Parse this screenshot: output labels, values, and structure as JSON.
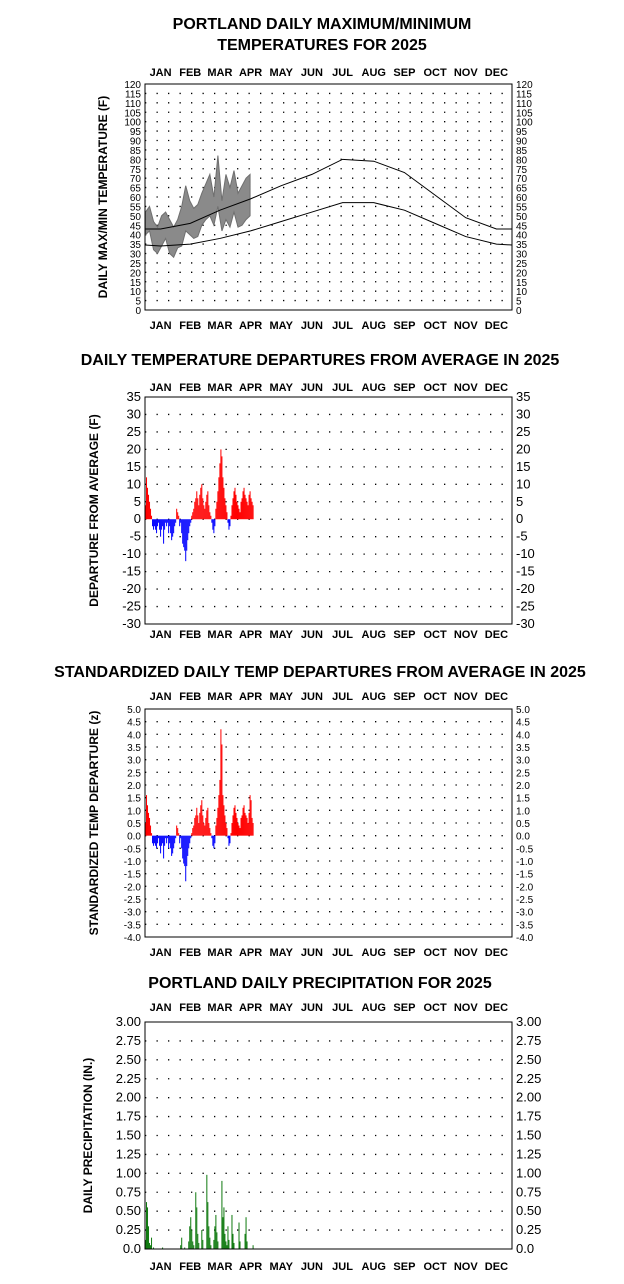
{
  "months": [
    "JAN",
    "FEB",
    "MAR",
    "APR",
    "MAY",
    "JUN",
    "JUL",
    "AUG",
    "SEP",
    "OCT",
    "NOV",
    "DEC"
  ],
  "chart_data": [
    {
      "type": "line",
      "title": "PORTLAND DAILY MAXIMUM/MINIMUM TEMPERATURES FOR 2025",
      "ylabel": "DAILY MAX/MIN TEMPERATURE (F)",
      "xlabel": "",
      "ylim": [
        0,
        120
      ],
      "yticks": [
        "0",
        "5",
        "10",
        "15",
        "20",
        "25",
        "30",
        "35",
        "40",
        "45",
        "50",
        "55",
        "60",
        "65",
        "70",
        "75",
        "80",
        "85",
        "90",
        "95",
        "100",
        "105",
        "110",
        "115",
        "120"
      ],
      "normal_high": {
        "month_mid_values": [
          43,
          46,
          53,
          59,
          66,
          72,
          80,
          79,
          73,
          61,
          49,
          43
        ]
      },
      "normal_low": {
        "month_mid_values": [
          34,
          35,
          38,
          42,
          47,
          52,
          57,
          57,
          53,
          46,
          39,
          35
        ]
      },
      "observed_range_2025": {
        "days": [
          1,
          5,
          9,
          13,
          17,
          21,
          25,
          29,
          33,
          37,
          41,
          45,
          49,
          53,
          57,
          61,
          65,
          69,
          73,
          77,
          81,
          85,
          89,
          93,
          97,
          101,
          105
        ],
        "max": [
          52,
          55,
          47,
          44,
          50,
          52,
          48,
          44,
          48,
          55,
          66,
          58,
          54,
          56,
          62,
          67,
          72,
          60,
          82,
          58,
          72,
          65,
          74,
          62,
          66,
          70,
          72
        ],
        "min": [
          40,
          42,
          32,
          30,
          34,
          38,
          30,
          28,
          33,
          34,
          42,
          40,
          38,
          39,
          45,
          48,
          50,
          45,
          55,
          42,
          48,
          44,
          52,
          44,
          45,
          48,
          50
        ]
      }
    },
    {
      "type": "bar",
      "title": "DAILY TEMPERATURE DEPARTURES FROM AVERAGE IN 2025",
      "ylabel": "DEPARTURE FROM AVERAGE (F)",
      "xlabel": "",
      "ylim": [
        -30,
        35
      ],
      "yticks": [
        "-30",
        "-25",
        "-20",
        "-15",
        "-10",
        "-5",
        "0",
        "5",
        "10",
        "15",
        "20",
        "25",
        "30",
        "35"
      ],
      "days": [
        1,
        2,
        3,
        4,
        5,
        6,
        7,
        8,
        9,
        10,
        11,
        12,
        13,
        14,
        15,
        16,
        17,
        18,
        19,
        20,
        21,
        22,
        23,
        24,
        25,
        26,
        27,
        28,
        29,
        30,
        31,
        32,
        33,
        34,
        35,
        36,
        37,
        38,
        39,
        40,
        41,
        42,
        43,
        44,
        45,
        46,
        47,
        48,
        49,
        50,
        51,
        52,
        53,
        54,
        55,
        56,
        57,
        58,
        59,
        60,
        61,
        62,
        63,
        64,
        65,
        66,
        67,
        68,
        69,
        70,
        71,
        72,
        73,
        74,
        75,
        76,
        77,
        78,
        79,
        80,
        81,
        82,
        83,
        84,
        85,
        86,
        87,
        88,
        89,
        90,
        91,
        92,
        93,
        94,
        95,
        96,
        97,
        98,
        99,
        100,
        101,
        102,
        103,
        104,
        105,
        106,
        107,
        108
      ],
      "values": [
        4,
        12,
        9,
        7,
        5,
        3,
        1,
        -2,
        -3,
        -2,
        -3,
        -4,
        -2,
        -1,
        -3,
        -5,
        -3,
        -2,
        -7,
        -3,
        -1,
        -2,
        -1,
        -4,
        -2,
        -4,
        -6,
        -5,
        -4,
        -2,
        -1,
        3,
        2,
        1,
        -2,
        -1,
        -4,
        -7,
        -8,
        -9,
        -12,
        -9,
        -6,
        -4,
        -2,
        -1,
        1,
        2,
        3,
        5,
        6,
        8,
        6,
        4,
        7,
        9,
        10,
        6,
        4,
        3,
        5,
        7,
        8,
        4,
        2,
        1,
        -1,
        -3,
        -4,
        -2,
        3,
        5,
        8,
        12,
        16,
        20,
        18,
        12,
        9,
        6,
        4,
        2,
        -1,
        -3,
        -2,
        1,
        4,
        6,
        8,
        9,
        7,
        5,
        4,
        3,
        2,
        5,
        6,
        8,
        9,
        7,
        6,
        5,
        4,
        7,
        8,
        6,
        5,
        4
      ]
    },
    {
      "type": "bar",
      "title": "STANDARDIZED DAILY TEMP DEPARTURES FROM AVERAGE IN 2025",
      "ylabel": "STANDARDIZED TEMP DEPARTURE (z)",
      "xlabel": "",
      "ylim": [
        -4.0,
        5.0
      ],
      "yticks": [
        "-4.0",
        "-3.5",
        "-3.0",
        "-2.5",
        "-2.0",
        "-1.5",
        "-1.0",
        "-0.5",
        "0.0",
        "0.5",
        "1.0",
        "1.5",
        "2.0",
        "2.5",
        "3.0",
        "3.5",
        "4.0",
        "4.5",
        "5.0"
      ],
      "days": [
        1,
        2,
        3,
        4,
        5,
        6,
        7,
        8,
        9,
        10,
        11,
        12,
        13,
        14,
        15,
        16,
        17,
        18,
        19,
        20,
        21,
        22,
        23,
        24,
        25,
        26,
        27,
        28,
        29,
        30,
        31,
        32,
        33,
        34,
        35,
        36,
        37,
        38,
        39,
        40,
        41,
        42,
        43,
        44,
        45,
        46,
        47,
        48,
        49,
        50,
        51,
        52,
        53,
        54,
        55,
        56,
        57,
        58,
        59,
        60,
        61,
        62,
        63,
        64,
        65,
        66,
        67,
        68,
        69,
        70,
        71,
        72,
        73,
        74,
        75,
        76,
        77,
        78,
        79,
        80,
        81,
        82,
        83,
        84,
        85,
        86,
        87,
        88,
        89,
        90,
        91,
        92,
        93,
        94,
        95,
        96,
        97,
        98,
        99,
        100,
        101,
        102,
        103,
        104,
        105,
        106,
        107,
        108
      ],
      "values": [
        0.5,
        1.6,
        1.2,
        0.9,
        0.7,
        0.4,
        0.1,
        -0.3,
        -0.4,
        -0.3,
        -0.4,
        -0.5,
        -0.3,
        -0.1,
        -0.4,
        -0.7,
        -0.4,
        -0.3,
        -0.9,
        -0.4,
        -0.1,
        -0.3,
        -0.1,
        -0.5,
        -0.3,
        -0.5,
        -0.8,
        -0.7,
        -0.5,
        -0.3,
        -0.1,
        0.4,
        0.3,
        0.1,
        -0.3,
        -0.1,
        -0.5,
        -0.9,
        -1.1,
        -1.2,
        -1.8,
        -1.2,
        -0.8,
        -0.5,
        -0.3,
        -0.1,
        0.1,
        0.3,
        0.4,
        0.7,
        0.8,
        1.1,
        0.8,
        0.5,
        0.9,
        1.2,
        1.4,
        0.8,
        0.5,
        0.4,
        0.7,
        1.0,
        1.1,
        0.5,
        0.3,
        0.1,
        -0.1,
        -0.4,
        -0.5,
        -0.3,
        0.4,
        0.7,
        1.1,
        1.6,
        2.2,
        4.2,
        3.6,
        1.6,
        1.2,
        0.8,
        0.5,
        0.3,
        -0.1,
        -0.4,
        -0.3,
        0.1,
        0.5,
        0.8,
        1.1,
        1.2,
        0.9,
        0.7,
        0.5,
        0.4,
        0.3,
        0.7,
        0.8,
        1.1,
        1.2,
        0.9,
        0.8,
        0.7,
        0.5,
        0.9,
        1.6,
        1.4,
        0.7,
        0.5
      ]
    },
    {
      "type": "bar",
      "title": "PORTLAND DAILY PRECIPITATION FOR 2025",
      "ylabel": "DAILY PRECIPITATION (IN.)",
      "xlabel": "",
      "ylim": [
        0,
        3.0
      ],
      "yticks": [
        "0.0",
        "0.25",
        "0.50",
        "0.75",
        "1.00",
        "1.25",
        "1.50",
        "1.75",
        "2.00",
        "2.25",
        "2.50",
        "2.75",
        "3.00"
      ],
      "days": [
        1,
        2,
        3,
        4,
        5,
        6,
        7,
        8,
        9,
        10,
        11,
        12,
        13,
        14,
        15,
        16,
        17,
        18,
        19,
        20,
        21,
        22,
        23,
        24,
        25,
        26,
        27,
        28,
        29,
        30,
        31,
        32,
        33,
        34,
        35,
        36,
        37,
        38,
        39,
        40,
        41,
        42,
        43,
        44,
        45,
        46,
        47,
        48,
        49,
        50,
        51,
        52,
        53,
        54,
        55,
        56,
        57,
        58,
        59,
        60,
        61,
        62,
        63,
        64,
        65,
        66,
        67,
        68,
        69,
        70,
        71,
        72,
        73,
        74,
        75,
        76,
        77,
        78,
        79,
        80,
        81,
        82,
        83,
        84,
        85,
        86,
        87,
        88,
        89,
        90,
        91,
        92,
        93,
        94,
        95,
        96,
        97,
        98,
        99,
        100,
        101,
        102,
        103,
        104,
        105,
        106,
        107,
        108
      ],
      "values": [
        0.12,
        0.62,
        0.55,
        0.3,
        0.08,
        0.05,
        0.15,
        0.0,
        0.02,
        0.0,
        0.0,
        0.0,
        0.0,
        0.0,
        0.0,
        0.0,
        0.0,
        0.02,
        0.0,
        0.0,
        0.0,
        0.0,
        0.0,
        0.0,
        0.0,
        0.0,
        0.0,
        0.0,
        0.0,
        0.0,
        0.0,
        0.0,
        0.0,
        0.0,
        0.0,
        0.05,
        0.15,
        0.0,
        0.0,
        0.02,
        0.0,
        0.0,
        0.0,
        0.1,
        0.3,
        0.42,
        0.25,
        0.1,
        0.05,
        0.0,
        0.75,
        0.55,
        0.2,
        0.08,
        0.0,
        0.0,
        0.25,
        0.12,
        0.0,
        0.0,
        0.0,
        0.98,
        0.62,
        0.3,
        0.15,
        0.05,
        0.0,
        0.0,
        0.12,
        0.3,
        0.45,
        0.22,
        0.1,
        0.0,
        0.0,
        0.0,
        0.9,
        0.42,
        0.55,
        0.2,
        0.1,
        0.05,
        0.3,
        0.12,
        0.0,
        0.0,
        0.45,
        0.2,
        0.08,
        0.0,
        0.0,
        0.0,
        0.0,
        0.35,
        0.1,
        0.0,
        0.0,
        0.0,
        0.0,
        0.2,
        0.42,
        0.1,
        0.0,
        0.0,
        0.0,
        0.0,
        0.0,
        0.05
      ]
    }
  ]
}
